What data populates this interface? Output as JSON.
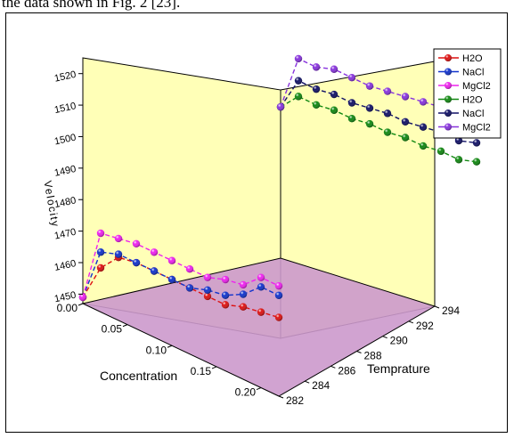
{
  "caption": "the data shown in Fig. 2 [23].",
  "chart_data": {
    "type": "scatter",
    "subtype": "3d-line-scatter",
    "title": "",
    "axes": {
      "x": {
        "label": "Concentration",
        "ticks": [
          "0.00",
          "0.05",
          "0.10",
          "0.15",
          "0.20"
        ],
        "range": [
          0.0,
          0.22
        ]
      },
      "y": {
        "label": "Temprature",
        "ticks": [
          "282",
          "284",
          "286",
          "288",
          "290",
          "292",
          "294"
        ],
        "range": [
          282,
          294
        ]
      },
      "z": {
        "label": "Velocity",
        "ticks": [
          "1450",
          "1460",
          "1470",
          "1480",
          "1490",
          "1500",
          "1510",
          "1520"
        ],
        "range": [
          1447,
          1525
        ]
      }
    },
    "legend_position": "top-right",
    "series": [
      {
        "name": "H2O",
        "color": "#dd1111",
        "group": "front",
        "x": [
          0.0,
          0.02,
          0.04,
          0.06,
          0.08,
          0.1,
          0.12,
          0.14,
          0.16,
          0.18,
          0.2,
          0.22
        ],
        "y": [
          282,
          282,
          282,
          282,
          282,
          282,
          282,
          282,
          282,
          282,
          282,
          282
        ],
        "z": [
          1449,
          1461,
          1467,
          1468,
          1468,
          1468,
          1468,
          1468,
          1468,
          1470,
          1471,
          1472
        ]
      },
      {
        "name": "NaCl",
        "color": "#1133cc",
        "group": "front",
        "x": [
          0.0,
          0.02,
          0.04,
          0.06,
          0.08,
          0.1,
          0.12,
          0.14,
          0.16,
          0.18,
          0.2,
          0.22
        ],
        "y": [
          282,
          282,
          282,
          282,
          282,
          282,
          282,
          282,
          282,
          282,
          282,
          282
        ],
        "z": [
          1449,
          1466,
          1468,
          1468,
          1468,
          1468,
          1468,
          1470,
          1471,
          1474,
          1479,
          1479
        ]
      },
      {
        "name": "MgCl2",
        "color": "#ee22ee",
        "group": "front",
        "x": [
          0.0,
          0.02,
          0.04,
          0.06,
          0.08,
          0.1,
          0.12,
          0.14,
          0.16,
          0.18,
          0.2,
          0.22
        ],
        "y": [
          282,
          282,
          282,
          282,
          282,
          282,
          282,
          282,
          282,
          282,
          282,
          282
        ],
        "z": [
          1449,
          1472,
          1473,
          1474,
          1474,
          1474,
          1474,
          1474,
          1476,
          1477,
          1482,
          1482
        ]
      },
      {
        "name": "H2O",
        "color": "#118811",
        "group": "back",
        "x": [
          0.0,
          0.02,
          0.04,
          0.06,
          0.08,
          0.1,
          0.12,
          0.14,
          0.16,
          0.18,
          0.2,
          0.22
        ],
        "y": [
          294,
          294,
          294,
          294,
          294,
          294,
          294,
          294,
          294,
          294,
          294,
          294
        ],
        "z": [
          1495,
          1501,
          1501,
          1502,
          1502,
          1503,
          1503,
          1504,
          1504,
          1505,
          1505,
          1507
        ]
      },
      {
        "name": "NaCl",
        "color": "#111166",
        "group": "back",
        "x": [
          0.0,
          0.02,
          0.04,
          0.06,
          0.08,
          0.1,
          0.12,
          0.14,
          0.16,
          0.18,
          0.2,
          0.22
        ],
        "y": [
          294,
          294,
          294,
          294,
          294,
          294,
          294,
          294,
          294,
          294,
          294,
          294
        ],
        "z": [
          1495,
          1506,
          1506,
          1507,
          1507,
          1508,
          1509,
          1509,
          1510,
          1511,
          1511,
          1513
        ]
      },
      {
        "name": "MgCl2",
        "color": "#8833dd",
        "group": "back",
        "x": [
          0.0,
          0.02,
          0.04,
          0.06,
          0.08,
          0.1,
          0.12,
          0.14,
          0.16,
          0.18,
          0.2,
          0.22
        ],
        "y": [
          294,
          294,
          294,
          294,
          294,
          294,
          294,
          294,
          294,
          294,
          294,
          294
        ],
        "z": [
          1495,
          1513,
          1513,
          1515,
          1515,
          1515,
          1516,
          1517,
          1518,
          1519,
          1520,
          1521
        ]
      }
    ]
  }
}
